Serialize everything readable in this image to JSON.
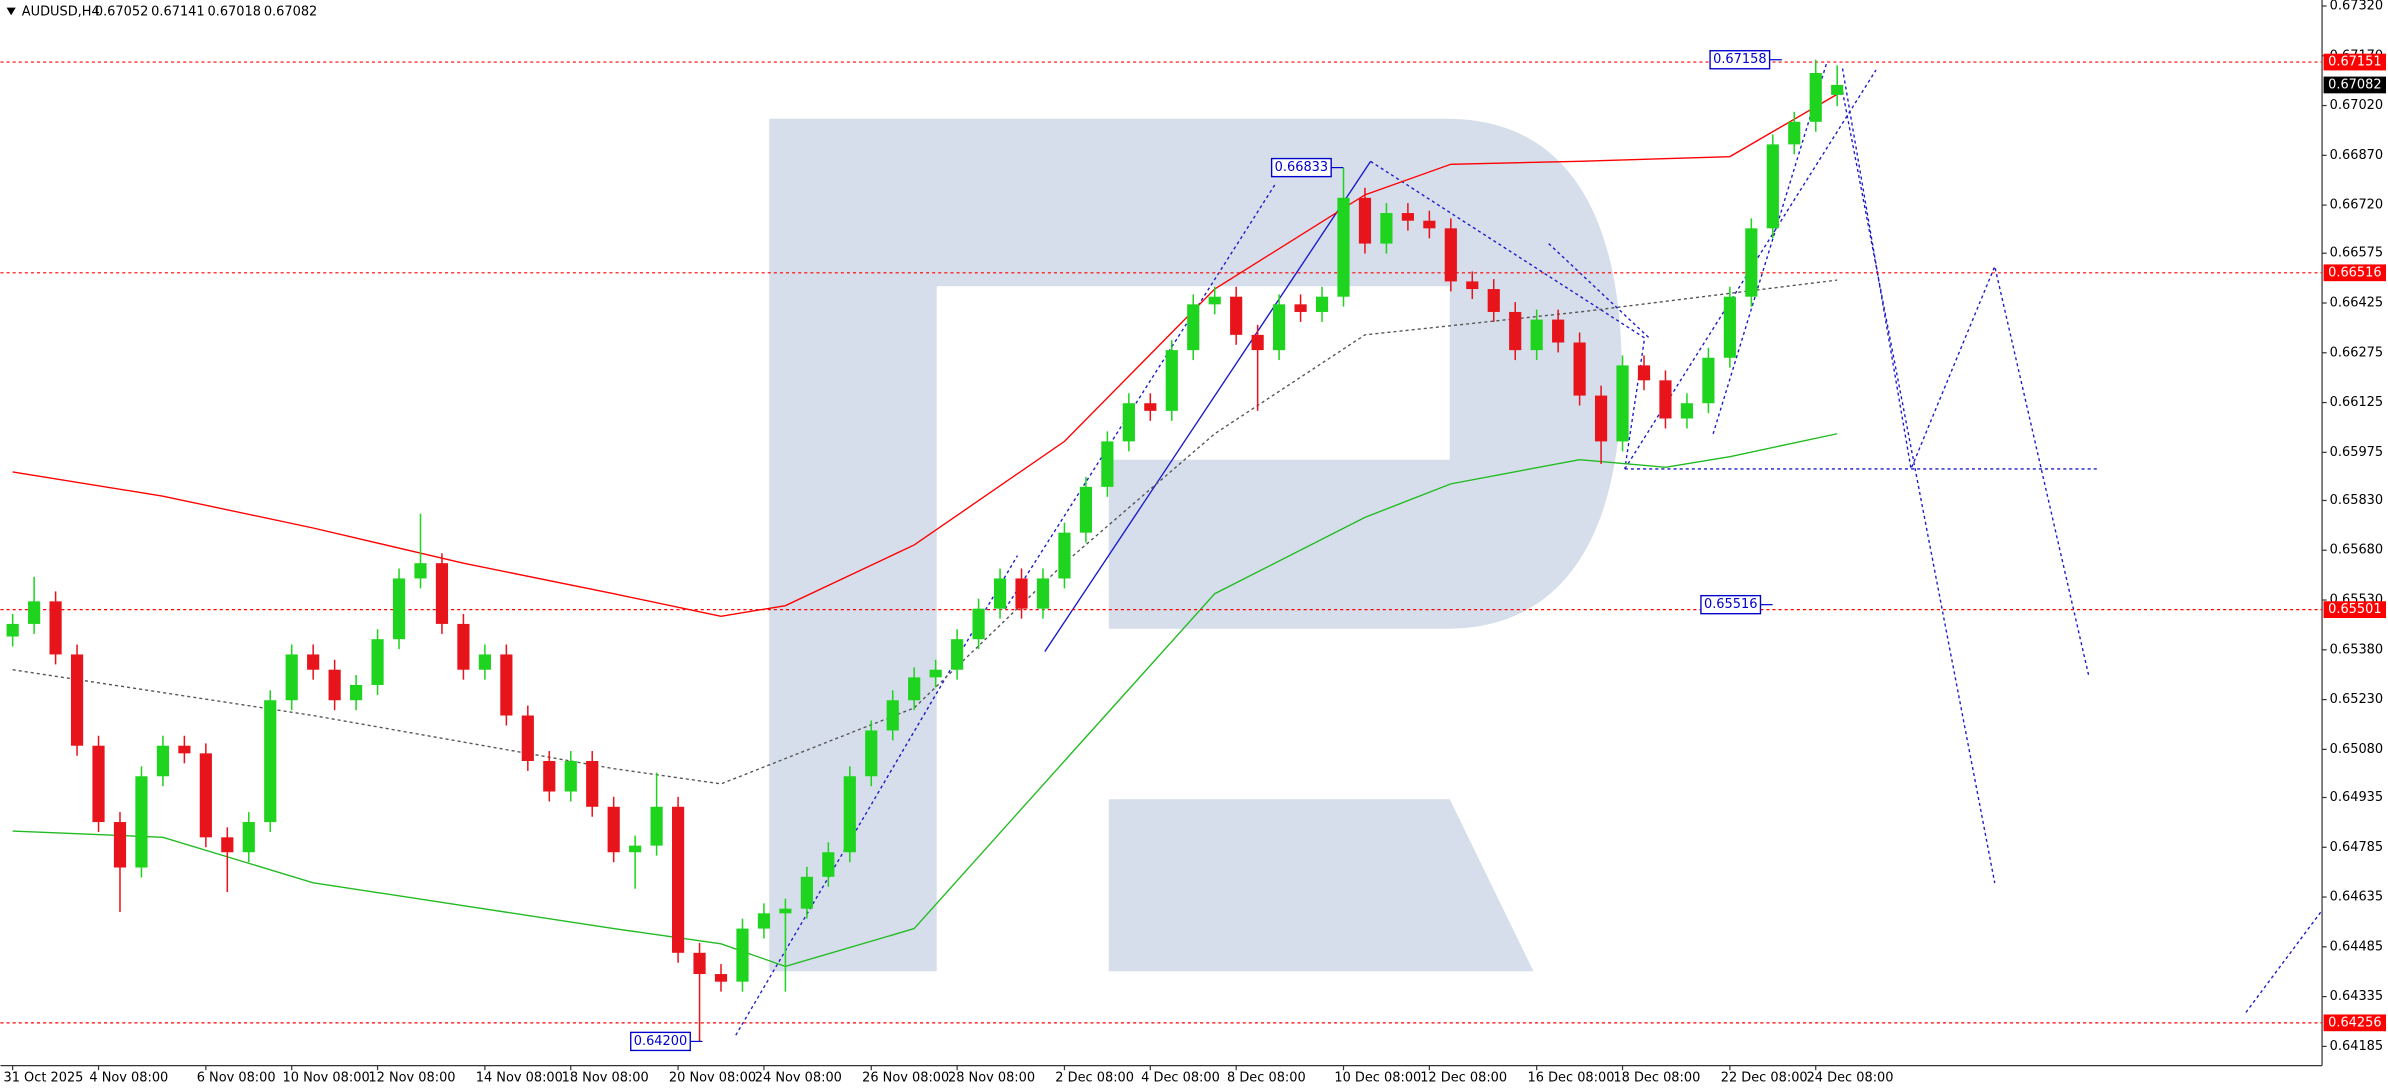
{
  "chart_data": {
    "type": "candlestick",
    "symbol": "AUDUSD,H4",
    "categories": [
      "31 Oct 2025",
      null,
      null,
      null,
      "4 Nov 08:00",
      null,
      null,
      null,
      null,
      "6 Nov 08:00",
      null,
      null,
      null,
      "10 Nov 08:00",
      null,
      null,
      null,
      "12 Nov 08:00",
      null,
      null,
      null,
      null,
      "14 Nov 08:00",
      null,
      null,
      null,
      "18 Nov 08:00",
      null,
      null,
      null,
      null,
      "20 Nov 08:00",
      null,
      null,
      null,
      "24 Nov 08:00",
      null,
      null,
      null,
      null,
      "26 Nov 08:00",
      null,
      null,
      null,
      "28 Nov 08:00",
      null,
      null,
      null,
      null,
      "2 Dec 08:00",
      null,
      null,
      null,
      "4 Dec 08:00",
      null,
      null,
      null,
      "8 Dec 08:00",
      null,
      null,
      null,
      null,
      "10 Dec 08:00",
      null,
      null,
      null,
      "12 Dec 08:00",
      null,
      null,
      null,
      null,
      "16 Dec 08:00",
      null,
      null,
      null,
      "18 Dec 08:00",
      null,
      null,
      null,
      null,
      "22 Dec 08:00",
      null,
      null,
      null,
      "24 Dec 08:00",
      null
    ],
    "open": [
      0.6542,
      0.65458,
      0.65526,
      0.65366,
      0.65091,
      0.64861,
      0.64724,
      0.64999,
      0.65091,
      0.65068,
      0.64815,
      0.6477,
      0.64861,
      0.65228,
      0.65366,
      0.6532,
      0.65228,
      0.65274,
      0.65412,
      0.65595,
      0.65641,
      0.65458,
      0.6532,
      0.65366,
      0.65182,
      0.65045,
      0.64953,
      0.65045,
      0.64907,
      0.6477,
      0.6479,
      0.64907,
      0.64467,
      0.64403,
      0.6438,
      0.6454,
      0.64586,
      0.646,
      0.64696,
      0.6477,
      0.64999,
      0.65137,
      0.65228,
      0.65297,
      0.6532,
      0.65412,
      0.65504,
      0.65595,
      0.65504,
      0.65595,
      0.65733,
      0.65871,
      0.66008,
      0.66123,
      0.661,
      0.66283,
      0.66421,
      0.66444,
      0.66329,
      0.66283,
      0.66421,
      0.66398,
      0.66444,
      0.66742,
      0.66604,
      0.66696,
      0.66673,
      0.6665,
      0.6649,
      0.66467,
      0.66398,
      0.66283,
      0.66375,
      0.66306,
      0.66146,
      0.66008,
      0.66237,
      0.66192,
      0.66077,
      0.66123,
      0.6626,
      0.66444,
      0.6665,
      0.66903,
      0.66971,
      0.67052
    ],
    "high": [
      0.65488,
      0.656,
      0.65556,
      0.65396,
      0.65121,
      0.64891,
      0.65029,
      0.65121,
      0.65121,
      0.65098,
      0.64845,
      0.64891,
      0.65258,
      0.65396,
      0.65396,
      0.6535,
      0.65304,
      0.65442,
      0.65625,
      0.6579,
      0.65671,
      0.65488,
      0.65396,
      0.65396,
      0.65212,
      0.65075,
      0.65075,
      0.65075,
      0.64937,
      0.6482,
      0.6501,
      0.64937,
      0.64497,
      0.64433,
      0.6457,
      0.64616,
      0.6463,
      0.64726,
      0.648,
      0.65029,
      0.65167,
      0.65258,
      0.65327,
      0.6535,
      0.65442,
      0.65534,
      0.65625,
      0.65625,
      0.65625,
      0.65763,
      0.65901,
      0.66038,
      0.66153,
      0.66153,
      0.66313,
      0.66451,
      0.66474,
      0.66474,
      0.66359,
      0.66451,
      0.66451,
      0.66474,
      0.66833,
      0.66772,
      0.66726,
      0.66726,
      0.66703,
      0.6668,
      0.6652,
      0.66497,
      0.66428,
      0.66405,
      0.66405,
      0.66336,
      0.66176,
      0.66267,
      0.66267,
      0.66222,
      0.66153,
      0.6629,
      0.66474,
      0.6668,
      0.66933,
      0.67001,
      0.67158,
      0.67141
    ],
    "low": [
      0.6539,
      0.65428,
      0.65336,
      0.65061,
      0.64831,
      0.6459,
      0.64694,
      0.64969,
      0.65038,
      0.64785,
      0.6465,
      0.6474,
      0.64831,
      0.65198,
      0.6529,
      0.65198,
      0.65198,
      0.65244,
      0.65382,
      0.65565,
      0.65428,
      0.6529,
      0.6529,
      0.65152,
      0.65015,
      0.64923,
      0.64923,
      0.64877,
      0.6474,
      0.6466,
      0.6476,
      0.64437,
      0.642,
      0.6435,
      0.6435,
      0.6451,
      0.6435,
      0.6457,
      0.64666,
      0.6474,
      0.64969,
      0.65107,
      0.65198,
      0.65267,
      0.6529,
      0.65382,
      0.65474,
      0.65474,
      0.65474,
      0.65565,
      0.65703,
      0.65841,
      0.65978,
      0.6607,
      0.6607,
      0.66253,
      0.66391,
      0.66299,
      0.661,
      0.66253,
      0.66368,
      0.66368,
      0.66414,
      0.66574,
      0.66574,
      0.66643,
      0.6662,
      0.6646,
      0.66437,
      0.66368,
      0.66253,
      0.66253,
      0.66276,
      0.66116,
      0.6594,
      0.65978,
      0.66162,
      0.66047,
      0.66047,
      0.66093,
      0.6623,
      0.66414,
      0.6662,
      0.66873,
      0.66941,
      0.67018
    ],
    "close": [
      0.65458,
      0.65526,
      0.65366,
      0.65091,
      0.64861,
      0.64724,
      0.64999,
      0.65091,
      0.65068,
      0.64815,
      0.6477,
      0.64861,
      0.65228,
      0.65366,
      0.6532,
      0.65228,
      0.65274,
      0.65412,
      0.65595,
      0.65641,
      0.65458,
      0.6532,
      0.65366,
      0.65182,
      0.65045,
      0.64953,
      0.65045,
      0.64907,
      0.6477,
      0.6479,
      0.64907,
      0.64467,
      0.64403,
      0.6438,
      0.6454,
      0.64586,
      0.646,
      0.64696,
      0.6477,
      0.64999,
      0.65137,
      0.65228,
      0.65297,
      0.6532,
      0.65412,
      0.65504,
      0.65595,
      0.65504,
      0.65595,
      0.65733,
      0.65871,
      0.66008,
      0.66123,
      0.661,
      0.66283,
      0.66421,
      0.66444,
      0.66329,
      0.66283,
      0.66421,
      0.66398,
      0.66444,
      0.66742,
      0.66604,
      0.66696,
      0.66673,
      0.6665,
      0.6649,
      0.66467,
      0.66398,
      0.66283,
      0.66375,
      0.66306,
      0.66146,
      0.66008,
      0.66237,
      0.66192,
      0.66077,
      0.66123,
      0.6626,
      0.66444,
      0.6665,
      0.66903,
      0.66971,
      0.67118,
      0.67082
    ],
    "up_color": "#1ed41e",
    "down_color": "#e8141c",
    "ylim": [
      0.64127,
      0.67338
    ],
    "yticks": [
      {
        "value": 0.6732,
        "label": "0.67320"
      },
      {
        "value": 0.6717,
        "label": "0.67170"
      },
      {
        "value": 0.6702,
        "label": "0.67020"
      },
      {
        "value": 0.6687,
        "label": "0.66870"
      },
      {
        "value": 0.6672,
        "label": "0.66720"
      },
      0.66575,
      0.66425,
      0.66275,
      0.66125,
      0.65975,
      {
        "value": 0.6583,
        "label": "0.65830"
      },
      {
        "value": 0.6568,
        "label": "0.65680"
      },
      {
        "value": 0.6553,
        "label": "0.65530"
      },
      {
        "value": 0.6538,
        "label": "0.65380"
      },
      {
        "value": 0.6523,
        "label": "0.65230"
      },
      {
        "value": 0.6508,
        "label": "0.65080"
      },
      0.64935,
      0.64785,
      0.64635,
      0.64485,
      0.64335,
      0.64185
    ],
    "grid": false,
    "levels": [
      0.67151,
      0.66516,
      0.65501,
      0.64256
    ],
    "level_color": "#ff0000",
    "last_price": 0.67082,
    "annotations": [
      0.67158,
      0.66833,
      0.65516,
      {
        "value": 0.642,
        "label": "0.64200"
      }
    ],
    "annotation_color": "#0000cc",
    "moving_averages": [
      {
        "color": "#ff0000",
        "x": [
          0,
          7,
          14,
          21,
          28,
          33,
          36,
          42,
          49,
          56,
          63,
          67,
          73,
          80,
          85
        ],
        "values": [
          0.65916,
          0.65843,
          0.65747,
          0.65641,
          0.65549,
          0.65481,
          0.65513,
          0.65696,
          0.66008,
          0.66467,
          0.66751,
          0.66843,
          0.66852,
          0.66866,
          0.67054
        ]
      },
      {
        "color": "#22bb22",
        "x": [
          0,
          7,
          14,
          21,
          28,
          33,
          36,
          42,
          49,
          56,
          63,
          67,
          73,
          77,
          80,
          85
        ],
        "values": [
          0.64834,
          0.64815,
          0.64678,
          0.64609,
          0.6454,
          0.64494,
          0.64426,
          0.6454,
          0.65045,
          0.65549,
          0.65779,
          0.6588,
          0.65953,
          0.6593,
          0.65962,
          0.66031
        ]
      },
      {
        "color": "#555555",
        "dashed": true,
        "x": [
          0,
          14,
          28,
          33,
          42,
          49,
          56,
          63,
          73,
          85
        ],
        "values": [
          0.6532,
          0.65182,
          0.65022,
          0.64976,
          0.65205,
          0.65641,
          0.66031,
          0.66329,
          0.66398,
          0.66494
        ]
      }
    ]
  }
}
